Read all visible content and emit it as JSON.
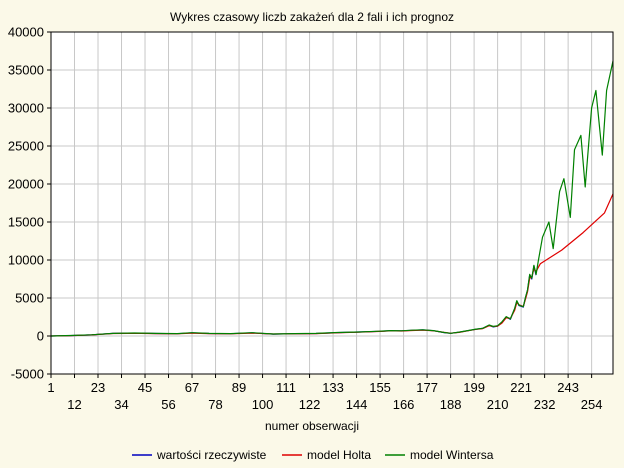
{
  "chart_data": {
    "type": "line",
    "title": "Wykres czasowy liczb zakażeń dla 2 fali i ich prognoz",
    "xlabel": "numer obserwacji",
    "ylabel": "",
    "xlim": [
      1,
      264
    ],
    "ylim": [
      -5000,
      40000
    ],
    "yticks": [
      -5000,
      0,
      5000,
      10000,
      15000,
      20000,
      25000,
      30000,
      35000,
      40000
    ],
    "xticks_upper": [
      1,
      23,
      45,
      67,
      89,
      111,
      133,
      155,
      177,
      199,
      221,
      243
    ],
    "xticks_lower": [
      12,
      34,
      56,
      78,
      100,
      122,
      144,
      166,
      188,
      210,
      232,
      254
    ],
    "grid": true,
    "legend_position": "bottom",
    "series": [
      {
        "name": "wartości rzeczywiste",
        "color": "#0000c0",
        "x": [
          1,
          10,
          20,
          30,
          40,
          50,
          60,
          67,
          75,
          85,
          95,
          105,
          115,
          125,
          135,
          145,
          155,
          160,
          165,
          170,
          175,
          180,
          185,
          188,
          192,
          196,
          200,
          203,
          206,
          208,
          210,
          212,
          214,
          216,
          218,
          219,
          220,
          222,
          223,
          224,
          225,
          226,
          227,
          228
        ],
        "y": [
          0,
          50,
          150,
          350,
          380,
          330,
          300,
          420,
          330,
          300,
          420,
          250,
          300,
          330,
          450,
          520,
          620,
          700,
          680,
          750,
          800,
          700,
          450,
          350,
          500,
          700,
          900,
          1000,
          1400,
          1200,
          1300,
          1800,
          2500,
          2200,
          3600,
          4600,
          4000,
          3800,
          5000,
          6000,
          8000,
          7500,
          9200,
          8000
        ]
      },
      {
        "name": "model Holta",
        "color": "#e00000",
        "x": [
          1,
          10,
          20,
          30,
          40,
          50,
          60,
          67,
          75,
          85,
          95,
          105,
          115,
          125,
          135,
          145,
          155,
          160,
          165,
          170,
          175,
          180,
          185,
          188,
          192,
          196,
          200,
          203,
          206,
          208,
          210,
          212,
          214,
          216,
          218,
          219,
          220,
          222,
          223,
          224,
          225,
          226,
          227,
          228,
          229,
          230,
          240,
          250,
          260,
          264
        ],
        "y": [
          0,
          40,
          140,
          330,
          360,
          320,
          290,
          380,
          320,
          290,
          380,
          260,
          290,
          320,
          420,
          500,
          600,
          680,
          660,
          730,
          770,
          690,
          470,
          370,
          480,
          680,
          880,
          980,
          1350,
          1250,
          1300,
          1700,
          2400,
          2300,
          3400,
          4400,
          4100,
          3900,
          4800,
          5800,
          7600,
          7800,
          8800,
          8500,
          9000,
          9500,
          11300,
          13600,
          16200,
          18700
        ]
      },
      {
        "name": "model Wintersa",
        "color": "#008000",
        "x": [
          1,
          10,
          20,
          30,
          40,
          50,
          60,
          67,
          75,
          85,
          95,
          105,
          115,
          125,
          135,
          145,
          155,
          160,
          165,
          170,
          175,
          180,
          185,
          188,
          192,
          196,
          200,
          203,
          206,
          208,
          210,
          212,
          214,
          216,
          218,
          219,
          220,
          222,
          223,
          224,
          225,
          226,
          227,
          228,
          229,
          231,
          234,
          236,
          239,
          241,
          244,
          246,
          249,
          251,
          254,
          256,
          259,
          261,
          264
        ],
        "y": [
          0,
          60,
          160,
          340,
          390,
          340,
          310,
          430,
          340,
          310,
          430,
          260,
          310,
          340,
          460,
          530,
          630,
          710,
          690,
          760,
          810,
          710,
          460,
          360,
          510,
          710,
          910,
          1010,
          1450,
          1250,
          1350,
          1850,
          2550,
          2250,
          3650,
          4650,
          4050,
          3850,
          5050,
          6050,
          8100,
          7600,
          9300,
          8100,
          9800,
          13000,
          15000,
          11500,
          19000,
          20700,
          15600,
          24500,
          26400,
          19600,
          30000,
          32300,
          23800,
          32300,
          36200
        ]
      }
    ]
  }
}
